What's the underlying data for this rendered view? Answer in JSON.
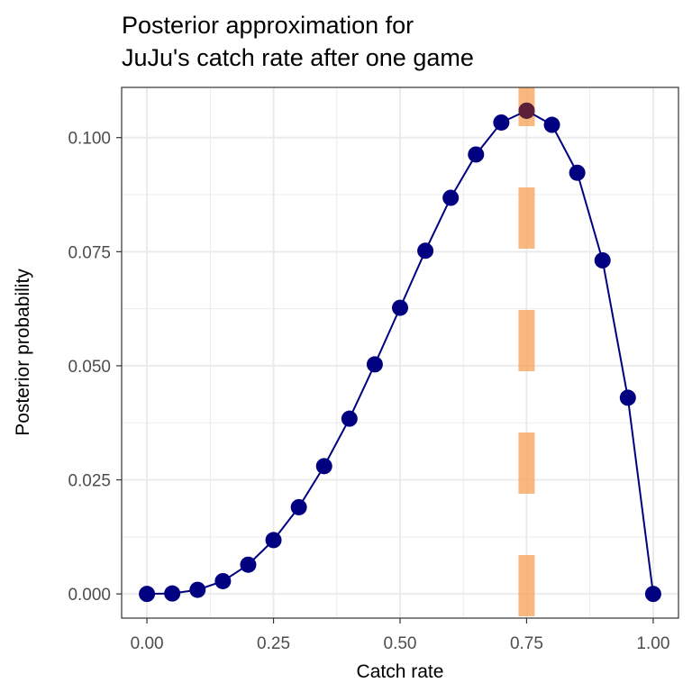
{
  "chart_data": {
    "type": "line",
    "title_lines": [
      "Posterior approximation for",
      "JuJu's catch rate after one game"
    ],
    "xlabel": "Catch rate",
    "ylabel": "Posterior probability",
    "xlim": [
      -0.05,
      1.05
    ],
    "ylim": [
      -0.0053,
      0.111
    ],
    "x_ticks": [
      0.0,
      0.25,
      0.5,
      0.75,
      1.0
    ],
    "x_tick_labels": [
      "0.00",
      "0.25",
      "0.50",
      "0.75",
      "1.00"
    ],
    "y_ticks": [
      0.0,
      0.025,
      0.05,
      0.075,
      0.1
    ],
    "y_tick_labels": [
      "0.000",
      "0.025",
      "0.050",
      "0.075",
      "0.100"
    ],
    "grid": true,
    "series": [
      {
        "x": [
          0.0,
          0.05,
          0.1,
          0.15,
          0.2,
          0.25,
          0.3,
          0.35,
          0.4,
          0.45,
          0.5,
          0.55,
          0.6,
          0.65,
          0.7,
          0.75,
          0.8,
          0.85,
          0.9,
          0.95,
          1.0
        ],
        "y": [
          0.0,
          0.0001,
          0.0009,
          0.0028,
          0.0064,
          0.0118,
          0.019,
          0.028,
          0.0384,
          0.0503,
          0.0627,
          0.0752,
          0.0868,
          0.0963,
          0.1033,
          0.1059,
          0.1028,
          0.0923,
          0.0731,
          0.043,
          0.0
        ]
      }
    ],
    "reference_line": {
      "x": 0.75
    },
    "highlight_point": {
      "x": 0.75,
      "y": 0.1059
    },
    "colors": {
      "line": "#000080",
      "point": "#000080",
      "highlight": "#5b1f3a",
      "reference": "#f5a055",
      "grid": "#ebebeb",
      "panel_border": "#333333"
    }
  }
}
